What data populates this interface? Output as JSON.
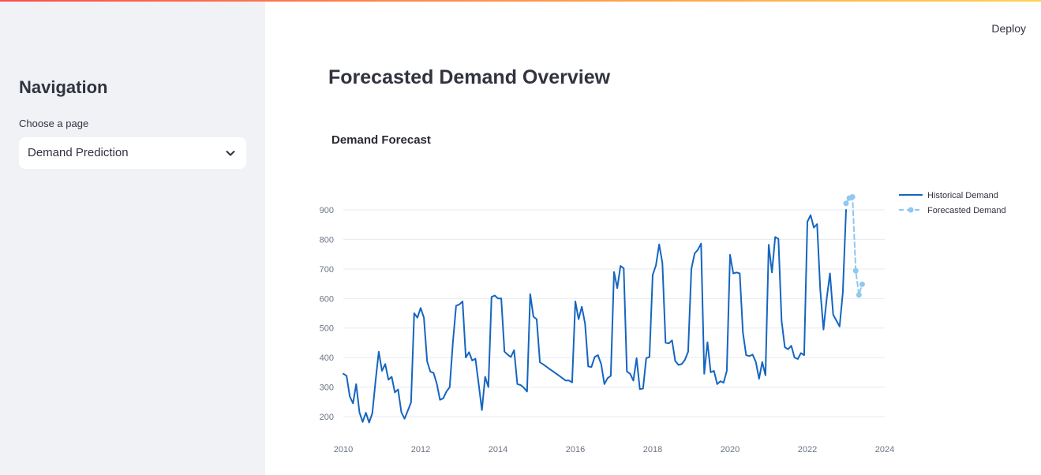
{
  "header": {
    "deploy_label": "Deploy"
  },
  "sidebar": {
    "title": "Navigation",
    "select_label": "Choose a page",
    "select_value": "Demand Prediction"
  },
  "main": {
    "title": "Forecasted Demand Overview"
  },
  "colors": {
    "historical": "#1565c0",
    "forecast": "#8fc8f0",
    "grid": "#e6e9ef",
    "accent_gradient": [
      "#ff4b4b",
      "#ffd34b"
    ]
  },
  "icons": {
    "select_chevron": "chevron-down-icon"
  },
  "chart_data": {
    "type": "line",
    "title": "Demand Forecast",
    "xlabel": "",
    "ylabel": "",
    "xlim": [
      "2010-01",
      "2024-01"
    ],
    "ylim": [
      170,
      950
    ],
    "x_ticks": [
      "2010",
      "2012",
      "2014",
      "2016",
      "2018",
      "2020",
      "2022",
      "2024"
    ],
    "y_ticks": [
      "200",
      "300",
      "400",
      "500",
      "600",
      "700",
      "800",
      "900"
    ],
    "grid": true,
    "legend_position": "top-right",
    "series": [
      {
        "name": "Historical Demand",
        "style": "solid",
        "points": [
          [
            "2010-01",
            345
          ],
          [
            "2010-02",
            338
          ],
          [
            "2010-03",
            268
          ],
          [
            "2010-04",
            245
          ],
          [
            "2010-05",
            310
          ],
          [
            "2010-06",
            215
          ],
          [
            "2010-07",
            182
          ],
          [
            "2010-08",
            213
          ],
          [
            "2010-09",
            180
          ],
          [
            "2010-10",
            212
          ],
          [
            "2010-11",
            320
          ],
          [
            "2010-12",
            420
          ],
          [
            "2011-01",
            355
          ],
          [
            "2011-02",
            378
          ],
          [
            "2011-03",
            325
          ],
          [
            "2011-04",
            335
          ],
          [
            "2011-05",
            282
          ],
          [
            "2011-06",
            292
          ],
          [
            "2011-07",
            215
          ],
          [
            "2011-08",
            193
          ],
          [
            "2011-09",
            220
          ],
          [
            "2011-10",
            248
          ],
          [
            "2011-11",
            550
          ],
          [
            "2011-12",
            535
          ],
          [
            "2012-01",
            568
          ],
          [
            "2012-02",
            535
          ],
          [
            "2012-03",
            387
          ],
          [
            "2012-04",
            352
          ],
          [
            "2012-05",
            348
          ],
          [
            "2012-06",
            312
          ],
          [
            "2012-07",
            257
          ],
          [
            "2012-08",
            262
          ],
          [
            "2012-09",
            285
          ],
          [
            "2012-10",
            300
          ],
          [
            "2012-11",
            450
          ],
          [
            "2012-12",
            575
          ],
          [
            "2013-01",
            580
          ],
          [
            "2013-02",
            590
          ],
          [
            "2013-03",
            400
          ],
          [
            "2013-04",
            418
          ],
          [
            "2013-05",
            390
          ],
          [
            "2013-06",
            396
          ],
          [
            "2013-07",
            310
          ],
          [
            "2013-08",
            222
          ],
          [
            "2013-09",
            335
          ],
          [
            "2013-10",
            300
          ],
          [
            "2013-11",
            605
          ],
          [
            "2013-12",
            610
          ],
          [
            "2014-01",
            600
          ],
          [
            "2014-02",
            600
          ],
          [
            "2014-03",
            420
          ],
          [
            "2014-04",
            410
          ],
          [
            "2014-05",
            402
          ],
          [
            "2014-06",
            425
          ],
          [
            "2014-07",
            310
          ],
          [
            "2014-08",
            307
          ],
          [
            "2014-09",
            298
          ],
          [
            "2014-10",
            285
          ],
          [
            "2014-11",
            615
          ],
          [
            "2014-12",
            538
          ],
          [
            "2015-01",
            530
          ],
          [
            "2015-02",
            384
          ],
          [
            "2015-03",
            377
          ],
          [
            "2015-04",
            369
          ],
          [
            "2015-05",
            361
          ],
          [
            "2015-06",
            354
          ],
          [
            "2015-07",
            346
          ],
          [
            "2015-08",
            338
          ],
          [
            "2015-09",
            330
          ],
          [
            "2015-10",
            322
          ],
          [
            "2015-11",
            322
          ],
          [
            "2015-12",
            316
          ],
          [
            "2016-01",
            590
          ],
          [
            "2016-02",
            530
          ],
          [
            "2016-03",
            572
          ],
          [
            "2016-04",
            515
          ],
          [
            "2016-05",
            370
          ],
          [
            "2016-06",
            368
          ],
          [
            "2016-07",
            402
          ],
          [
            "2016-08",
            408
          ],
          [
            "2016-09",
            378
          ],
          [
            "2016-10",
            310
          ],
          [
            "2016-11",
            330
          ],
          [
            "2016-12",
            338
          ],
          [
            "2017-01",
            690
          ],
          [
            "2017-02",
            635
          ],
          [
            "2017-03",
            710
          ],
          [
            "2017-04",
            702
          ],
          [
            "2017-05",
            353
          ],
          [
            "2017-06",
            345
          ],
          [
            "2017-07",
            322
          ],
          [
            "2017-08",
            398
          ],
          [
            "2017-09",
            293
          ],
          [
            "2017-10",
            295
          ],
          [
            "2017-11",
            398
          ],
          [
            "2017-12",
            402
          ],
          [
            "2018-01",
            680
          ],
          [
            "2018-02",
            712
          ],
          [
            "2018-03",
            783
          ],
          [
            "2018-04",
            720
          ],
          [
            "2018-05",
            450
          ],
          [
            "2018-06",
            448
          ],
          [
            "2018-07",
            458
          ],
          [
            "2018-08",
            388
          ],
          [
            "2018-09",
            375
          ],
          [
            "2018-10",
            378
          ],
          [
            "2018-11",
            392
          ],
          [
            "2018-12",
            420
          ],
          [
            "2019-01",
            700
          ],
          [
            "2019-02",
            752
          ],
          [
            "2019-03",
            765
          ],
          [
            "2019-04",
            786
          ],
          [
            "2019-05",
            345
          ],
          [
            "2019-06",
            452
          ],
          [
            "2019-07",
            350
          ],
          [
            "2019-08",
            355
          ],
          [
            "2019-09",
            310
          ],
          [
            "2019-10",
            320
          ],
          [
            "2019-11",
            315
          ],
          [
            "2019-12",
            355
          ],
          [
            "2020-01",
            748
          ],
          [
            "2020-02",
            685
          ],
          [
            "2020-03",
            688
          ],
          [
            "2020-04",
            685
          ],
          [
            "2020-05",
            485
          ],
          [
            "2020-06",
            408
          ],
          [
            "2020-07",
            405
          ],
          [
            "2020-08",
            410
          ],
          [
            "2020-09",
            385
          ],
          [
            "2020-10",
            328
          ],
          [
            "2020-11",
            385
          ],
          [
            "2020-12",
            340
          ],
          [
            "2021-01",
            782
          ],
          [
            "2021-02",
            688
          ],
          [
            "2021-03",
            808
          ],
          [
            "2021-04",
            802
          ],
          [
            "2021-05",
            525
          ],
          [
            "2021-06",
            435
          ],
          [
            "2021-07",
            428
          ],
          [
            "2021-08",
            440
          ],
          [
            "2021-09",
            400
          ],
          [
            "2021-10",
            395
          ],
          [
            "2021-11",
            415
          ],
          [
            "2021-12",
            408
          ],
          [
            "2022-01",
            860
          ],
          [
            "2022-02",
            882
          ],
          [
            "2022-03",
            840
          ],
          [
            "2022-04",
            852
          ],
          [
            "2022-05",
            630
          ],
          [
            "2022-06",
            495
          ],
          [
            "2022-07",
            600
          ],
          [
            "2022-08",
            685
          ],
          [
            "2022-09",
            545
          ],
          [
            "2022-10",
            525
          ],
          [
            "2022-11",
            505
          ],
          [
            "2022-12",
            620
          ],
          [
            "2023-01",
            900
          ]
        ]
      },
      {
        "name": "Forecasted Demand",
        "style": "dashed-markers",
        "points": [
          [
            "2023-01",
            922
          ],
          [
            "2023-02",
            940
          ],
          [
            "2023-03",
            944
          ],
          [
            "2023-04",
            694
          ],
          [
            "2023-05",
            612
          ],
          [
            "2023-06",
            648
          ]
        ]
      }
    ]
  }
}
